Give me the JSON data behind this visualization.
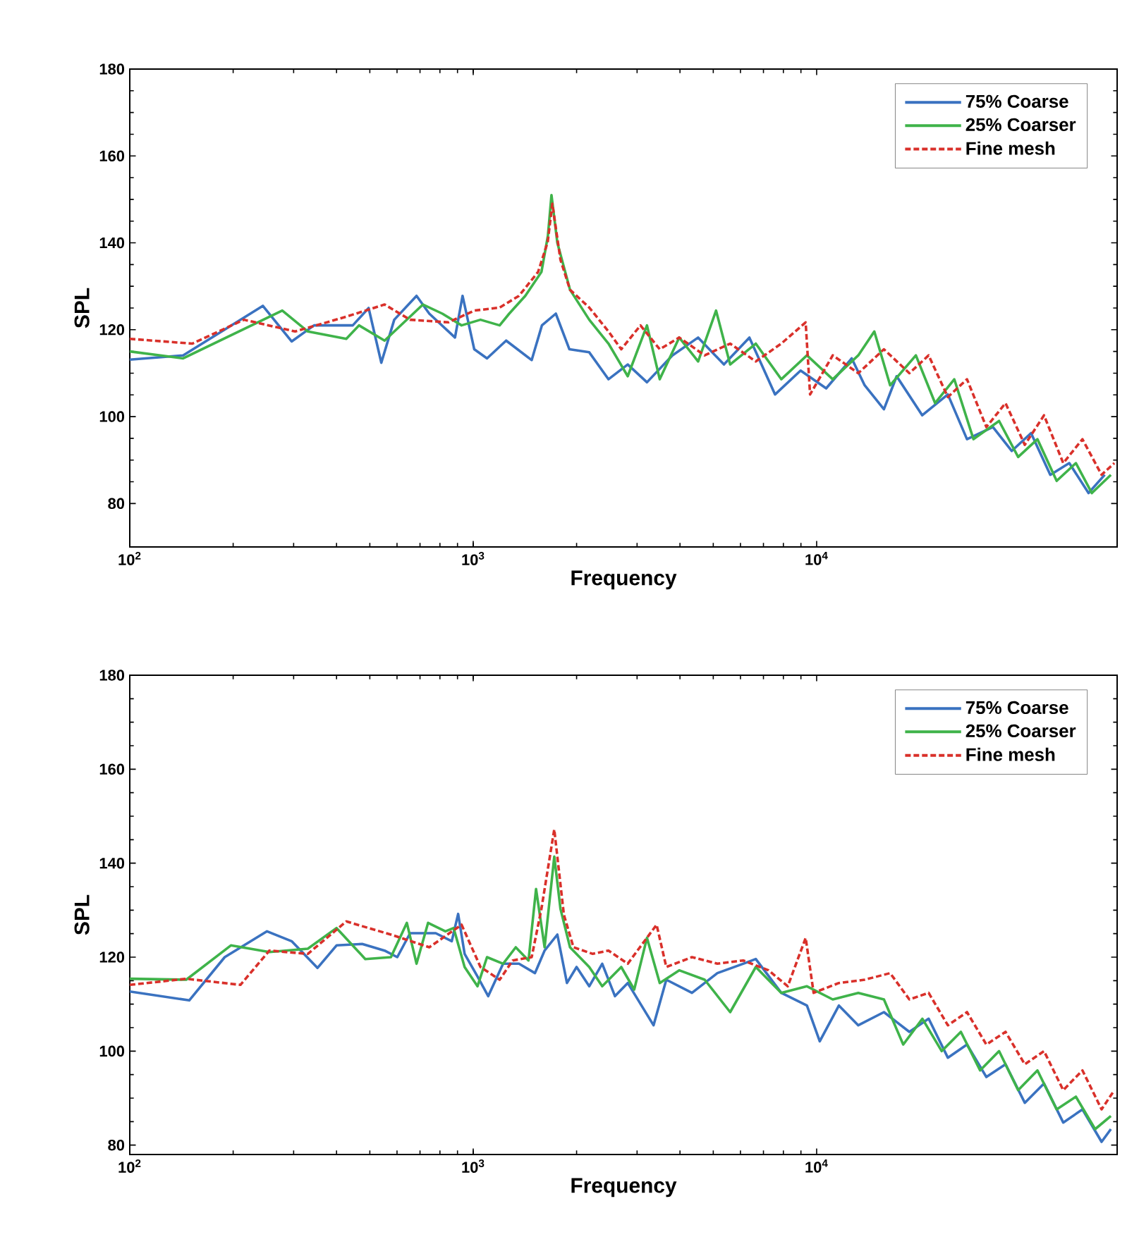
{
  "chart_data": [
    {
      "type": "line",
      "xlabel": "Frequency",
      "ylabel": "SPL",
      "log": "x",
      "legend": "top right",
      "marker": "none",
      "xlim": [
        100,
        75000
      ],
      "ylim": [
        70,
        180
      ],
      "xticks": [
        {
          "value": 100,
          "label": "10$^{2}$"
        },
        {
          "value": 1000,
          "label": "10$^{3}$"
        },
        {
          "value": 10000,
          "label": "10$^{4}$"
        }
      ],
      "yticks": [
        80,
        100,
        120,
        140,
        160,
        180
      ],
      "series": [
        {
          "name": "75% Coarse",
          "color": "#3a72c0",
          "line_style": "solid",
          "x": [
            100,
            143,
            244,
            296,
            344,
            446,
            496,
            540,
            589,
            684,
            745,
            885,
            931,
            1007,
            1097,
            1247,
            1480,
            1585,
            1740,
            1906,
            2177,
            2476,
            2818,
            3206,
            3803,
            4518,
            5370,
            6370,
            7568,
            8980,
            10660,
            12650,
            13800,
            15700,
            17100,
            20300,
            24100,
            27400,
            32600,
            37000,
            42100,
            47900,
            54400,
            61900,
            69000
          ],
          "values": [
            113.1,
            114.1,
            125.5,
            117.3,
            121,
            121,
            125,
            112.4,
            122.3,
            127.8,
            123.7,
            118.2,
            127.8,
            115.5,
            113.4,
            117.5,
            113,
            121,
            123.7,
            115.5,
            114.8,
            108.6,
            112,
            107.9,
            114.1,
            118.2,
            112,
            118.2,
            105.1,
            110.6,
            106.5,
            113.4,
            107.2,
            101.7,
            109.3,
            100.3,
            105.1,
            94.8,
            97.6,
            92.1,
            96.2,
            86.6,
            89.3,
            82.4,
            86.6
          ]
        },
        {
          "name": "25% Coarser",
          "color": "#3fb34a",
          "line_style": "solid",
          "x": [
            100,
            143,
            278,
            330,
            427,
            465,
            552,
            714,
            813,
            925,
            1050,
            1194,
            1273,
            1418,
            1580,
            1650,
            1690,
            1758,
            1914,
            2177,
            2477,
            2818,
            3206,
            3493,
            3980,
            4518,
            5095,
            5600,
            6650,
            7890,
            9370,
            11140,
            13220,
            14720,
            16370,
            19450,
            22130,
            25160,
            28620,
            33980,
            38620,
            43940,
            49990,
            56870,
            63300,
            71900
          ],
          "values": [
            115,
            113.4,
            124.4,
            119.6,
            117.9,
            121,
            117.5,
            125.8,
            123.7,
            121,
            122.3,
            121,
            123.7,
            127.8,
            133.3,
            141.6,
            151,
            140,
            129.2,
            122.3,
            116.8,
            109.3,
            121,
            108.6,
            118.2,
            112.7,
            124.4,
            112,
            116.8,
            108.6,
            114.1,
            108.6,
            114.1,
            119.6,
            107.2,
            114.1,
            103.1,
            108.6,
            94.8,
            99,
            90.7,
            94.8,
            85.2,
            89.3,
            82.4,
            86.6
          ]
        },
        {
          "name": "Fine mesh",
          "color": "#d9302a",
          "line_style": "dashed",
          "x": [
            100,
            152,
            215,
            303,
            427,
            552,
            655,
            847,
            1007,
            1194,
            1359,
            1545,
            1648,
            1700,
            1795,
            1914,
            2177,
            2477,
            2698,
            3069,
            3493,
            3980,
            4720,
            5600,
            6650,
            7890,
            9290,
            9570,
            11140,
            13220,
            15700,
            18620,
            21190,
            24100,
            27400,
            31200,
            35480,
            40370,
            45920,
            52240,
            59430,
            67560,
            73600
          ],
          "values": [
            117.9,
            116.8,
            122.3,
            119.6,
            123,
            125.8,
            122.3,
            121.7,
            124.4,
            125.1,
            127.8,
            133.3,
            140.2,
            149,
            136.1,
            129.2,
            125.1,
            119.6,
            115.5,
            121,
            115.5,
            118.2,
            114.1,
            116.8,
            112.7,
            116.8,
            121.7,
            105.1,
            114.1,
            110,
            115.5,
            110,
            114.1,
            104.5,
            108.6,
            97.6,
            103.1,
            93.5,
            100.3,
            89.3,
            94.8,
            86.6,
            89.3
          ]
        }
      ]
    },
    {
      "type": "line",
      "xlabel": "Frequency",
      "ylabel": "SPL",
      "log": "x",
      "legend": "top right",
      "marker": "none",
      "xlim": [
        100,
        75000
      ],
      "ylim": [
        78,
        180
      ],
      "xticks": [
        {
          "value": 100,
          "label": "10$^{2}$"
        },
        {
          "value": 1000,
          "label": "10$^{3}$"
        },
        {
          "value": 10000,
          "label": "10$^{4}$"
        }
      ],
      "yticks": [
        80,
        100,
        120,
        140,
        160,
        180
      ],
      "series": [
        {
          "name": "75% Coarse",
          "color": "#3a72c0",
          "line_style": "solid",
          "x": [
            100,
            149,
            189,
            251,
            296,
            352,
            400,
            475,
            552,
            601,
            655,
            778,
            866,
            904,
            944,
            1029,
            1106,
            1222,
            1359,
            1513,
            1614,
            1758,
            1875,
            2000,
            2177,
            2375,
            2587,
            2818,
            3350,
            3650,
            4335,
            5140,
            6110,
            6650,
            7890,
            9370,
            10210,
            11610,
            13220,
            15700,
            18620,
            21190,
            24100,
            27400,
            31200,
            35480,
            40370,
            45920,
            52240,
            59430,
            67560,
            71900
          ],
          "values": [
            112.7,
            110.8,
            120,
            125.5,
            123.4,
            117.7,
            122.5,
            122.8,
            121.4,
            120,
            125.1,
            125.1,
            123.4,
            129.2,
            120.7,
            115.9,
            111.7,
            118.6,
            118.6,
            116.6,
            121.4,
            124.8,
            114.5,
            117.9,
            113.8,
            118.6,
            111.7,
            114.5,
            105.5,
            115.2,
            112.4,
            116.6,
            118.6,
            119.6,
            112.4,
            109.7,
            102.1,
            109.7,
            105.5,
            108.3,
            104.1,
            106.9,
            98.6,
            101.4,
            94.5,
            97.2,
            89,
            93.1,
            84.8,
            87.6,
            80.7,
            83.4
          ]
        },
        {
          "name": "25% Coarser",
          "color": "#3fb34a",
          "line_style": "solid",
          "x": [
            100,
            146,
            197,
            255,
            330,
            400,
            485,
            576,
            641,
            684,
            739,
            830,
            877,
            944,
            1029,
            1097,
            1222,
            1330,
            1449,
            1524,
            1614,
            1722,
            1795,
            1914,
            2177,
            2375,
            2698,
            2943,
            3206,
            3493,
            3980,
            4720,
            5600,
            6650,
            7890,
            9370,
            11140,
            13220,
            15700,
            17870,
            20320,
            23130,
            26300,
            29920,
            33980,
            38620,
            43940,
            49990,
            56870,
            64700,
            71900
          ],
          "values": [
            115.4,
            115.2,
            122.5,
            121.1,
            121.8,
            126.2,
            119.6,
            120,
            127.3,
            118.6,
            127.3,
            125.5,
            126.2,
            117.9,
            113.8,
            120,
            118.6,
            122.1,
            119.3,
            134.5,
            122.1,
            141.4,
            130.3,
            122.1,
            117.9,
            113.8,
            117.9,
            113.1,
            124.1,
            114.5,
            117.2,
            115.2,
            108.3,
            117.9,
            112.4,
            113.8,
            111,
            112.4,
            111,
            101.4,
            106.9,
            100,
            104.1,
            95.9,
            100,
            91.7,
            95.9,
            87.6,
            90.3,
            83.4,
            86.2
          ]
        },
        {
          "name": "Fine mesh",
          "color": "#d9302a",
          "line_style": "dashed",
          "x": [
            100,
            146,
            210,
            255,
            330,
            427,
            576,
            745,
            925,
            1050,
            1194,
            1303,
            1480,
            1580,
            1722,
            1837,
            1959,
            2228,
            2477,
            2818,
            3420,
            3650,
            4335,
            5140,
            6110,
            7240,
            8240,
            9290,
            9800,
            11610,
            13800,
            16370,
            18620,
            21190,
            24100,
            27400,
            31200,
            35480,
            40370,
            45920,
            52240,
            59430,
            67560,
            73600
          ],
          "values": [
            114.1,
            115.4,
            114.1,
            121.4,
            120.7,
            127.6,
            124.8,
            122.1,
            126.9,
            117.9,
            115.2,
            119.3,
            120,
            130.3,
            147.2,
            129,
            122.1,
            120.7,
            121.4,
            118.6,
            126.9,
            117.9,
            120,
            118.6,
            119.3,
            117.2,
            113.8,
            124.1,
            112.4,
            114.5,
            115.2,
            116.6,
            111,
            112.4,
            105.5,
            108.3,
            101.4,
            104.1,
            97.2,
            100,
            91.7,
            95.9,
            87.6,
            91.7
          ]
        }
      ]
    }
  ]
}
